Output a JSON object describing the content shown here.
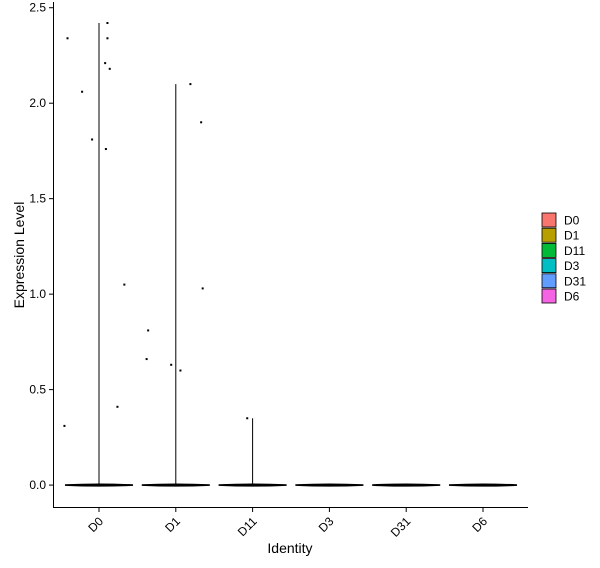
{
  "chart_data": {
    "type": "violin",
    "xlabel": "Identity",
    "ylabel": "Expression Level",
    "categories": [
      "D0",
      "D1",
      "D11",
      "D3",
      "D31",
      "D6"
    ],
    "colors": [
      "#F8766D",
      "#B79F00",
      "#00BA38",
      "#00BFC4",
      "#619CFF",
      "#F564E3"
    ],
    "ylim": [
      -0.12,
      2.53
    ],
    "yticks": [
      0.0,
      0.5,
      1.0,
      1.5,
      2.0,
      2.5
    ],
    "ytick_labels": [
      "0.0",
      "0.5",
      "1.0",
      "1.5",
      "2.0",
      "2.5"
    ],
    "max_values": [
      2.42,
      2.1,
      0.35,
      0,
      0,
      0
    ],
    "points": [
      [
        {
          "x": -0.41,
          "y": 2.34
        },
        {
          "x": 0.11,
          "y": 2.42
        },
        {
          "x": 0.11,
          "y": 2.34
        },
        {
          "x": -0.22,
          "y": 2.06
        },
        {
          "x": 0.08,
          "y": 2.21
        },
        {
          "x": 0.14,
          "y": 2.18
        },
        {
          "x": -0.09,
          "y": 1.81
        },
        {
          "x": 0.09,
          "y": 1.76
        },
        {
          "x": 0.33,
          "y": 1.05
        },
        {
          "x": 0.24,
          "y": 0.41
        },
        {
          "x": -0.45,
          "y": 0.31
        }
      ],
      [
        {
          "x": 0.19,
          "y": 2.1
        },
        {
          "x": 0.33,
          "y": 1.9
        },
        {
          "x": 0.35,
          "y": 1.03
        },
        {
          "x": -0.36,
          "y": 0.81
        },
        {
          "x": -0.38,
          "y": 0.66
        },
        {
          "x": -0.06,
          "y": 0.63
        },
        {
          "x": 0.06,
          "y": 0.6
        }
      ],
      [
        {
          "x": -0.07,
          "y": 0.35
        }
      ],
      [],
      [],
      []
    ],
    "legend": {
      "placement": "right",
      "entries": [
        "D0",
        "D1",
        "D11",
        "D3",
        "D31",
        "D6"
      ]
    },
    "grid": false
  }
}
